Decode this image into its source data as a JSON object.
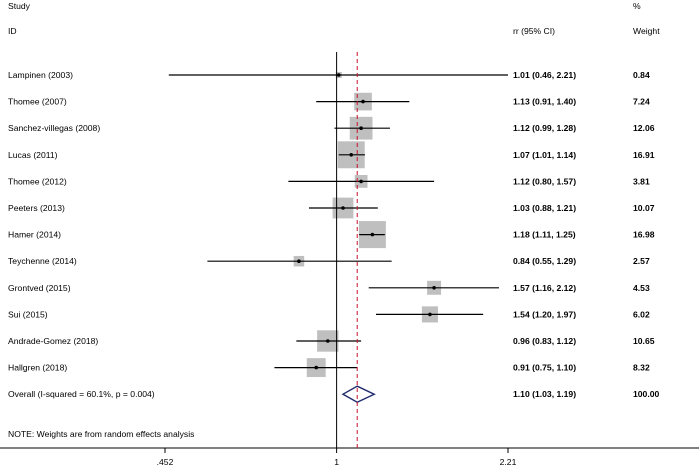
{
  "header": {
    "col_study": "Study",
    "col_id": "ID",
    "col_effect": "rr (95% CI)",
    "col_pct": "%",
    "col_weight": "Weight"
  },
  "chart_data": {
    "type": "forest",
    "x_scale": "log",
    "null_value": 1,
    "x_ticks": [
      {
        "value": 0.452,
        "label": ".452"
      },
      {
        "value": 1,
        "label": "1"
      },
      {
        "value": 2.21,
        "label": "2.21"
      }
    ],
    "studies": [
      {
        "label": "Lampinen (2003)",
        "rr": 1.01,
        "lo": 0.46,
        "hi": 2.21,
        "ci_text": "1.01 (0.46, 2.21)",
        "weight": 0.84,
        "weight_text": "0.84"
      },
      {
        "label": "Thomee (2007)",
        "rr": 1.13,
        "lo": 0.91,
        "hi": 1.4,
        "ci_text": "1.13 (0.91, 1.40)",
        "weight": 7.24,
        "weight_text": "7.24"
      },
      {
        "label": "Sanchez-villegas (2008)",
        "rr": 1.12,
        "lo": 0.99,
        "hi": 1.28,
        "ci_text": "1.12 (0.99, 1.28)",
        "weight": 12.06,
        "weight_text": "12.06"
      },
      {
        "label": "Lucas (2011)",
        "rr": 1.07,
        "lo": 1.01,
        "hi": 1.14,
        "ci_text": "1.07 (1.01, 1.14)",
        "weight": 16.91,
        "weight_text": "16.91"
      },
      {
        "label": "Thomee (2012)",
        "rr": 1.12,
        "lo": 0.8,
        "hi": 1.57,
        "ci_text": "1.12 (0.80, 1.57)",
        "weight": 3.81,
        "weight_text": "3.81"
      },
      {
        "label": "Peeters (2013)",
        "rr": 1.03,
        "lo": 0.88,
        "hi": 1.21,
        "ci_text": "1.03 (0.88, 1.21)",
        "weight": 10.07,
        "weight_text": "10.07"
      },
      {
        "label": "Hamer (2014)",
        "rr": 1.18,
        "lo": 1.11,
        "hi": 1.25,
        "ci_text": "1.18 (1.11, 1.25)",
        "weight": 16.98,
        "weight_text": "16.98"
      },
      {
        "label": "Teychenne (2014)",
        "rr": 0.84,
        "lo": 0.55,
        "hi": 1.29,
        "ci_text": "0.84 (0.55, 1.29)",
        "weight": 2.57,
        "weight_text": "2.57"
      },
      {
        "label": "Grontved (2015)",
        "rr": 1.57,
        "lo": 1.16,
        "hi": 2.12,
        "ci_text": "1.57 (1.16, 2.12)",
        "weight": 4.53,
        "weight_text": "4.53"
      },
      {
        "label": "Sui (2015)",
        "rr": 1.54,
        "lo": 1.2,
        "hi": 1.97,
        "ci_text": "1.54 (1.20, 1.97)",
        "weight": 6.02,
        "weight_text": "6.02"
      },
      {
        "label": "Andrade-Gomez (2018)",
        "rr": 0.96,
        "lo": 0.83,
        "hi": 1.12,
        "ci_text": "0.96 (0.83, 1.12)",
        "weight": 10.65,
        "weight_text": "10.65"
      },
      {
        "label": "Hallgren (2018)",
        "rr": 0.91,
        "lo": 0.75,
        "hi": 1.1,
        "ci_text": "0.91 (0.75, 1.10)",
        "weight": 8.32,
        "weight_text": "8.32"
      }
    ],
    "overall": {
      "label": "Overall  (I-squared = 60.1%, p = 0.004)",
      "rr": 1.1,
      "lo": 1.03,
      "hi": 1.19,
      "ci_text": "1.10 (1.03, 1.19)",
      "weight": 100.0,
      "weight_text": "100.00"
    },
    "note": "NOTE: Weights are from random effects analysis",
    "colors": {
      "box": "#bfbfbf",
      "diamond": "#1f2a6b",
      "overall_line": "#c8102e",
      "line": "#000000"
    }
  }
}
